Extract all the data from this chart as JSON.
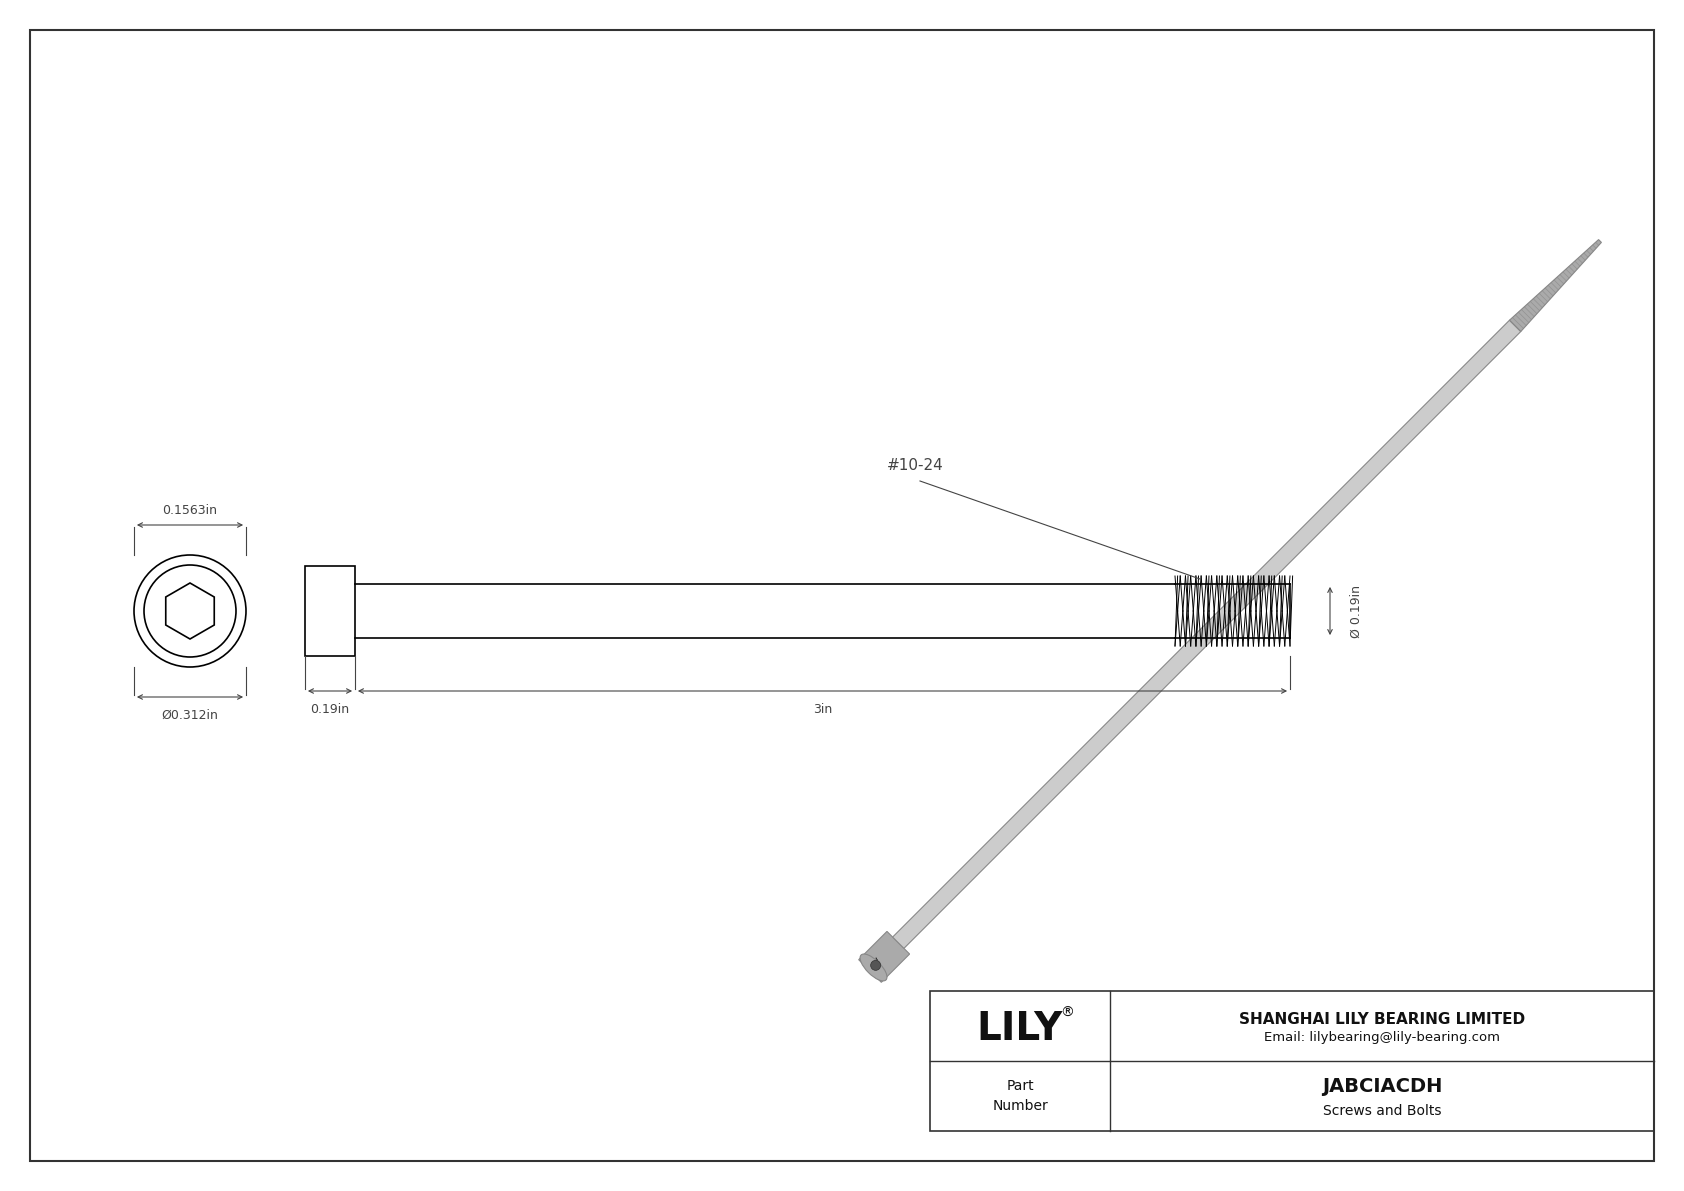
{
  "bg_color": "#ffffff",
  "line_color": "#000000",
  "dim_color": "#000000",
  "title_company": "SHANGHAI LILY BEARING LIMITED",
  "title_email": "Email: lilybearing@lily-bearing.com",
  "part_label": "Part\nNumber",
  "part_number": "JABCIACDH",
  "part_type": "Screws and Bolts",
  "lily_logo": "LILY",
  "dim_head_width": "0.19in",
  "dim_shaft_length": "3in",
  "dim_front_diameter": "Ø0.312in",
  "dim_head_height": "0.1563in",
  "dim_thread_diameter": "Ø 0.19in",
  "thread_label": "#10-24",
  "screw_line_color": "#1a1a1a",
  "dim_line_color": "#555555"
}
